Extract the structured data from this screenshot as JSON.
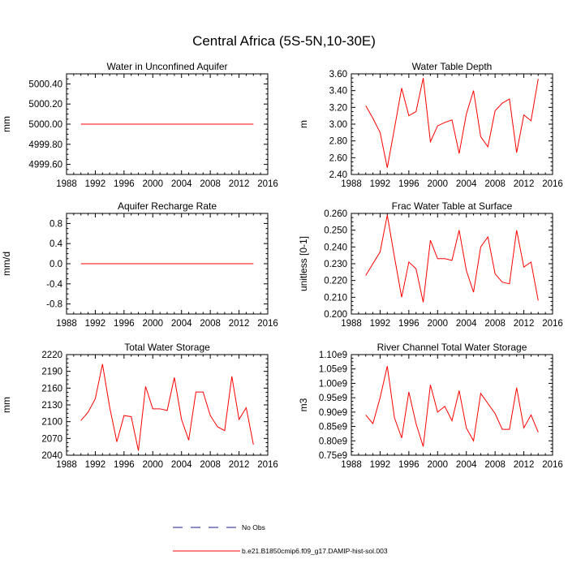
{
  "figure": {
    "title": "Central Africa (5S-5N,10-30E)"
  },
  "legend": {
    "placement": "bottom-center",
    "entries": [
      {
        "label": "No Obs",
        "color": "#1a1a80",
        "style": "dashed"
      },
      {
        "label": "b.e21.B1850cmip6.f09_g17.DAMIP-hist-sol.003",
        "color": "#ff0000",
        "style": "solid"
      }
    ]
  },
  "colors": {
    "series": "#ff0000",
    "obs": "#1a1a80",
    "axes": "#000000"
  },
  "chart_data": [
    {
      "type": "line",
      "title": "Water in Unconfined Aquifer",
      "xlabel": "",
      "ylabel": "mm",
      "xlim": [
        1988,
        2016
      ],
      "ylim": [
        4999.5,
        5000.5
      ],
      "xticks": [
        1988,
        1992,
        1996,
        2000,
        2004,
        2008,
        2012,
        2016
      ],
      "yticks": [
        4999.6,
        4999.8,
        5000.0,
        5000.2,
        5000.4
      ],
      "ytick_labels": [
        "4999.60",
        "4999.80",
        "5000.00",
        "5000.20",
        "5000.40"
      ],
      "series": [
        {
          "x": [
            1990,
            1991,
            1992,
            1993,
            1994,
            1995,
            1996,
            1997,
            1998,
            1999,
            2000,
            2001,
            2002,
            2003,
            2004,
            2005,
            2006,
            2007,
            2008,
            2009,
            2010,
            2011,
            2012,
            2013,
            2014
          ],
          "values": [
            5000.0,
            5000.0,
            5000.0,
            5000.0,
            5000.0,
            5000.0,
            5000.0,
            5000.0,
            5000.0,
            5000.0,
            5000.0,
            5000.0,
            5000.0,
            5000.0,
            5000.0,
            5000.0,
            5000.0,
            5000.0,
            5000.0,
            5000.0,
            5000.0,
            5000.0,
            5000.0,
            5000.0,
            5000.0
          ]
        }
      ]
    },
    {
      "type": "line",
      "title": "Water Table Depth",
      "xlabel": "",
      "ylabel": "m",
      "xlim": [
        1988,
        2016
      ],
      "ylim": [
        2.4,
        3.6
      ],
      "xticks": [
        1988,
        1992,
        1996,
        2000,
        2004,
        2008,
        2012,
        2016
      ],
      "yticks": [
        2.4,
        2.6,
        2.8,
        3.0,
        3.2,
        3.4,
        3.6
      ],
      "ytick_labels": [
        "2.40",
        "2.60",
        "2.80",
        "3.00",
        "3.20",
        "3.40",
        "3.60"
      ],
      "series": [
        {
          "x": [
            1990,
            1991,
            1992,
            1993,
            1994,
            1995,
            1996,
            1997,
            1998,
            1999,
            2000,
            2001,
            2002,
            2003,
            2004,
            2005,
            2006,
            2007,
            2008,
            2009,
            2010,
            2011,
            2012,
            2013,
            2014
          ],
          "values": [
            3.22,
            3.07,
            2.9,
            2.48,
            2.95,
            3.43,
            3.1,
            3.15,
            3.55,
            2.79,
            2.98,
            3.02,
            3.05,
            2.65,
            3.12,
            3.4,
            2.85,
            2.73,
            3.16,
            3.25,
            3.3,
            2.66,
            3.11,
            3.04,
            3.54
          ]
        }
      ]
    },
    {
      "type": "line",
      "title": "Aquifer Recharge Rate",
      "xlabel": "",
      "ylabel": "mm/d",
      "xlim": [
        1988,
        2016
      ],
      "ylim": [
        -1.0,
        1.0
      ],
      "xticks": [
        1988,
        1992,
        1996,
        2000,
        2004,
        2008,
        2012,
        2016
      ],
      "yticks": [
        -0.8,
        -0.4,
        0.0,
        0.4,
        0.8
      ],
      "ytick_labels": [
        "-0.8",
        "-0.4",
        "0.0",
        "0.4",
        "0.8"
      ],
      "series": [
        {
          "x": [
            1990,
            1991,
            1992,
            1993,
            1994,
            1995,
            1996,
            1997,
            1998,
            1999,
            2000,
            2001,
            2002,
            2003,
            2004,
            2005,
            2006,
            2007,
            2008,
            2009,
            2010,
            2011,
            2012,
            2013,
            2014
          ],
          "values": [
            0,
            0,
            0,
            0,
            0,
            0,
            0,
            0,
            0,
            0,
            0,
            0,
            0,
            0,
            0,
            0,
            0,
            0,
            0,
            0,
            0,
            0,
            0,
            0,
            0
          ]
        }
      ]
    },
    {
      "type": "line",
      "title": "Frac Water Table at Surface",
      "xlabel": "",
      "ylabel": "unitless [0-1]",
      "xlim": [
        1988,
        2016
      ],
      "ylim": [
        0.2,
        0.26
      ],
      "xticks": [
        1988,
        1992,
        1996,
        2000,
        2004,
        2008,
        2012,
        2016
      ],
      "yticks": [
        0.2,
        0.21,
        0.22,
        0.23,
        0.24,
        0.25,
        0.26
      ],
      "ytick_labels": [
        "0.200",
        "0.210",
        "0.220",
        "0.230",
        "0.240",
        "0.250",
        "0.260"
      ],
      "series": [
        {
          "x": [
            1990,
            1991,
            1992,
            1993,
            1994,
            1995,
            1996,
            1997,
            1998,
            1999,
            2000,
            2001,
            2002,
            2003,
            2004,
            2005,
            2006,
            2007,
            2008,
            2009,
            2010,
            2011,
            2012,
            2013,
            2014
          ],
          "values": [
            0.223,
            0.23,
            0.237,
            0.259,
            0.234,
            0.21,
            0.231,
            0.227,
            0.207,
            0.244,
            0.233,
            0.233,
            0.232,
            0.25,
            0.226,
            0.213,
            0.24,
            0.246,
            0.224,
            0.219,
            0.218,
            0.25,
            0.228,
            0.231,
            0.208
          ]
        }
      ]
    },
    {
      "type": "line",
      "title": "Total Water Storage",
      "xlabel": "",
      "ylabel": "mm",
      "xlim": [
        1988,
        2016
      ],
      "ylim": [
        2040,
        2220
      ],
      "xticks": [
        1988,
        1992,
        1996,
        2000,
        2004,
        2008,
        2012,
        2016
      ],
      "yticks": [
        2040,
        2070,
        2100,
        2130,
        2160,
        2190,
        2220
      ],
      "ytick_labels": [
        "2040",
        "2070",
        "2100",
        "2130",
        "2160",
        "2190",
        "2220"
      ],
      "series": [
        {
          "x": [
            1990,
            1991,
            1992,
            1993,
            1994,
            1995,
            1996,
            1997,
            1998,
            1999,
            2000,
            2001,
            2002,
            2003,
            2004,
            2005,
            2006,
            2007,
            2008,
            2009,
            2010,
            2011,
            2012,
            2013,
            2014
          ],
          "values": [
            2102,
            2117,
            2141,
            2203,
            2126,
            2064,
            2111,
            2109,
            2048,
            2163,
            2123,
            2123,
            2120,
            2179,
            2104,
            2067,
            2153,
            2153,
            2111,
            2091,
            2084,
            2181,
            2104,
            2125,
            2059
          ]
        }
      ]
    },
    {
      "type": "line",
      "title": "River Channel Total Water Storage",
      "xlabel": "",
      "ylabel": "m3",
      "xlim": [
        1988,
        2016
      ],
      "ylim": [
        750000000.0,
        1100000000.0
      ],
      "xticks": [
        1988,
        1992,
        1996,
        2000,
        2004,
        2008,
        2012,
        2016
      ],
      "yticks": [
        750000000.0,
        800000000.0,
        850000000.0,
        900000000.0,
        950000000.0,
        1000000000.0,
        1050000000.0,
        1100000000.0
      ],
      "ytick_labels": [
        "0.75e9",
        "0.80e9",
        "0.85e9",
        "0.90e9",
        "0.95e9",
        "1.00e9",
        "1.05e9",
        "1.10e9"
      ],
      "series": [
        {
          "x": [
            1990,
            1991,
            1992,
            1993,
            1994,
            1995,
            1996,
            1997,
            1998,
            1999,
            2000,
            2001,
            2002,
            2003,
            2004,
            2005,
            2006,
            2007,
            2008,
            2009,
            2010,
            2011,
            2012,
            2013,
            2014
          ],
          "values": [
            890000000.0,
            860000000.0,
            950000000.0,
            1060000000.0,
            880000000.0,
            810000000.0,
            970000000.0,
            860000000.0,
            780000000.0,
            995000000.0,
            900000000.0,
            920000000.0,
            870000000.0,
            975000000.0,
            845000000.0,
            800000000.0,
            965000000.0,
            930000000.0,
            895000000.0,
            840000000.0,
            840000000.0,
            985000000.0,
            845000000.0,
            890000000.0,
            830000000.0
          ]
        }
      ]
    }
  ]
}
